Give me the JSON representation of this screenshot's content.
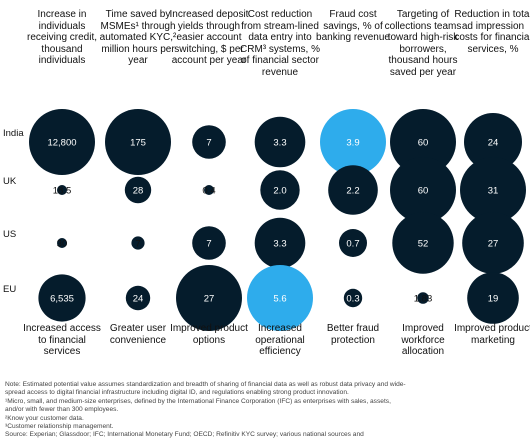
{
  "chart_data": {
    "type": "bubble-grid",
    "columns": [
      {
        "key": "c1",
        "header": "Increase in individuals receiving credit, thousand individuals"
      },
      {
        "key": "c2",
        "header": "Time saved by MSMEs¹ through automated KYC,² million hours per year"
      },
      {
        "key": "c3",
        "header": "Increased deposit yields through easier account switching, $ per account per year"
      },
      {
        "key": "c4",
        "header": "Cost reduction from stream-lined data entry into CRM³ systems, % of financial sector revenue"
      },
      {
        "key": "c5",
        "header": "Fraud cost savings, % of banking revenue"
      },
      {
        "key": "c6",
        "header": "Targeting of collections teams toward high-risk borrowers, thousand hours saved per year"
      },
      {
        "key": "c7",
        "header": "Reduction in total ad impression costs for financial services, %"
      }
    ],
    "rows": [
      "India",
      "UK",
      "US",
      "EU"
    ],
    "series": [
      {
        "name": "India",
        "values": [
          12800,
          175,
          7,
          3.3,
          3.9,
          60,
          24
        ]
      },
      {
        "name": "UK",
        "values": [
          18.5,
          28,
          0.4,
          2.0,
          2.2,
          60,
          31
        ]
      },
      {
        "name": "US",
        "values": [
          30,
          7,
          7,
          3.3,
          0.7,
          52,
          27
        ]
      },
      {
        "name": "EU",
        "values": [
          6535,
          24,
          27,
          5.6,
          0.3,
          1.83,
          19
        ]
      }
    ],
    "value_labels": [
      [
        "12,800",
        "175",
        "7",
        "3.3",
        "3.9",
        "60",
        "24"
      ],
      [
        "18.5",
        "28",
        "0.4",
        "2.0",
        "2.2",
        "60",
        "31"
      ],
      [
        "30",
        "7",
        "7",
        "3.3",
        "0.7",
        "52",
        "27"
      ],
      [
        "6,535",
        "24",
        "27",
        "5.6",
        "0.3",
        "1.83",
        "19"
      ]
    ],
    "footers": [
      "Increased access to financial services",
      "Greater user convenience",
      "Improved product options",
      "Increased operational efficiency",
      "Better fraud protection",
      "Improved workforce allocation",
      "Improved product marketing"
    ],
    "colors": {
      "dark": "#051c2c",
      "light": "#2eacec"
    }
  },
  "notes": [
    "Note: Estimated potential value assumes standardization and breadth of sharing of financial data as well as robust data privacy and wide-",
    "spread access to digital financial infrastructure including digital ID, and regulations enabling strong product innovation.",
    "¹Micro, small, and medium-size enterprises, defined by the International Finance Corporation (IFC) as enterprises with sales, assets,",
    "and/or with fewer than 300 employees.",
    "²Know your customer data.",
    "³Customer relationship management.",
    "Source: Experian; Glassdoor; IFC; International Monetary Fund; OECD; Refinitiv KYC survey; various national sources and"
  ]
}
